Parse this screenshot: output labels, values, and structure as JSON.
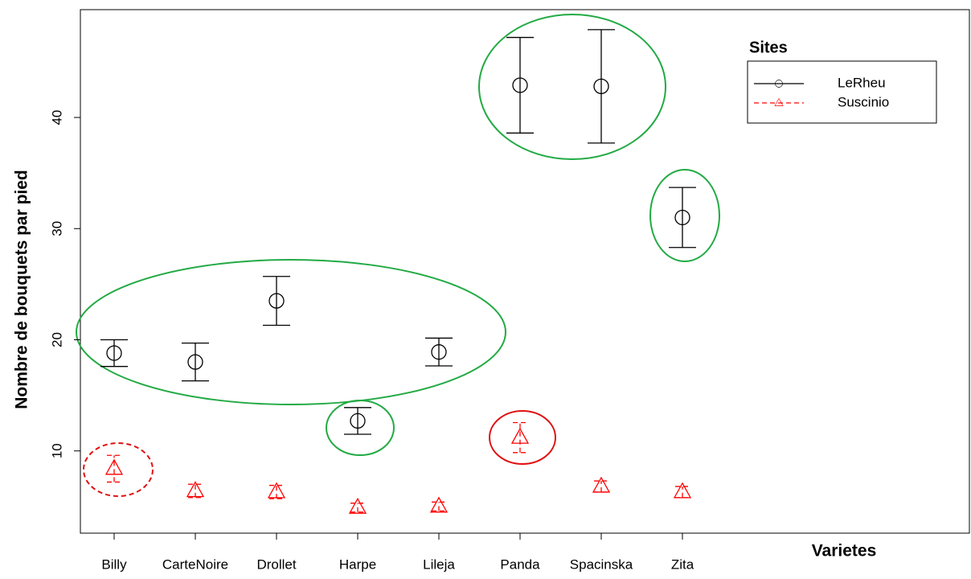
{
  "chart_data": {
    "type": "errorbar",
    "xlabel": "Varietes",
    "ylabel": "Nombre de bouquets par pied",
    "categories": [
      "Billy",
      "CarteNoire",
      "Drollet",
      "Harpe",
      "Lileja",
      "Panda",
      "Spacinska",
      "Zita"
    ],
    "series": [
      {
        "name": "LeRheu",
        "color": "#000000",
        "marker": "circle",
        "dashed": false,
        "values": [
          18.8,
          18.0,
          23.5,
          12.7,
          18.9,
          42.9,
          42.8,
          31.0
        ],
        "errors": [
          1.2,
          1.7,
          2.2,
          1.2,
          1.25,
          4.3,
          5.1,
          2.7
        ]
      },
      {
        "name": "Suscinio",
        "color": "#ff0000",
        "marker": "triangle",
        "dashed": true,
        "values": [
          8.4,
          6.4,
          6.3,
          4.9,
          5.0,
          11.2,
          6.8,
          6.3
        ],
        "errors": [
          1.2,
          0.6,
          0.6,
          0.4,
          0.4,
          1.35,
          0.5,
          0.5
        ]
      }
    ],
    "ylim": [
      2.6,
      49.7
    ],
    "yticks": [
      10,
      20,
      30,
      40
    ],
    "legend": "topright",
    "legend_title": "Sites"
  }
}
